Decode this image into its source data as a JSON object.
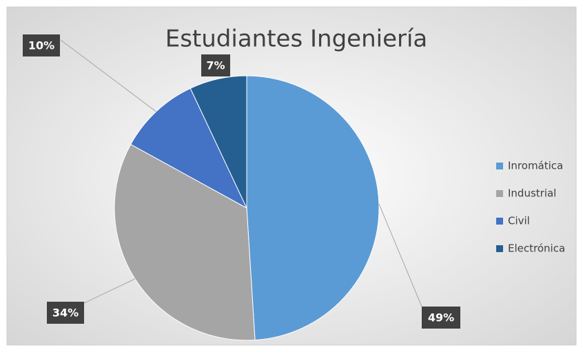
{
  "chart_data": {
    "type": "pie",
    "title": "Estudiantes Ingeniería",
    "categories": [
      "Inromática",
      "Industrial",
      "Civil",
      "Electrónica"
    ],
    "values": [
      49,
      34,
      10,
      7
    ],
    "value_labels": [
      "49%",
      "34%",
      "10%",
      "7%"
    ],
    "colors": [
      "#5b9bd5",
      "#a5a5a5",
      "#4472c4",
      "#255e91"
    ],
    "legend": "right"
  }
}
